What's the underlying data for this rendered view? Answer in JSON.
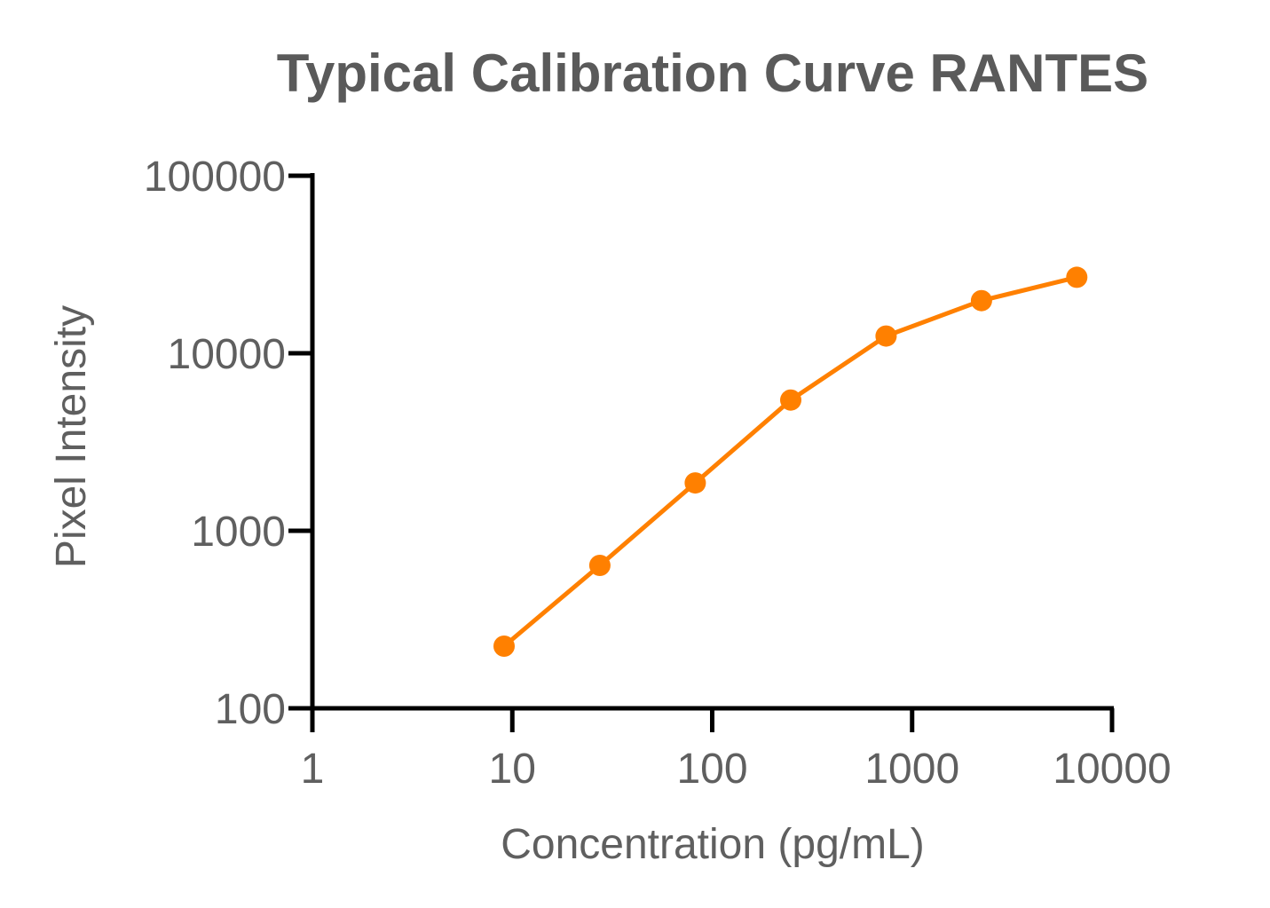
{
  "chart_data": {
    "type": "line",
    "title": "Typical Calibration Curve RANTES",
    "xlabel": "Concentration (pg/mL)",
    "ylabel": "Pixel Intensity",
    "xscale": "log",
    "yscale": "log",
    "xlim": [
      1,
      10000
    ],
    "ylim": [
      100,
      100000
    ],
    "xticks": [
      "1",
      "10",
      "100",
      "1000",
      "10000"
    ],
    "yticks": [
      "100",
      "1000",
      "10000",
      "100000"
    ],
    "grid": false,
    "legend": "none",
    "series": [
      {
        "color": "#ff8000",
        "points": [
          {
            "x": 9.1,
            "y": 224
          },
          {
            "x": 27.4,
            "y": 638
          },
          {
            "x": 82.3,
            "y": 1860
          },
          {
            "x": 247,
            "y": 5450
          },
          {
            "x": 741,
            "y": 12500
          },
          {
            "x": 2222,
            "y": 19800
          },
          {
            "x": 6667,
            "y": 26800
          }
        ]
      }
    ]
  }
}
